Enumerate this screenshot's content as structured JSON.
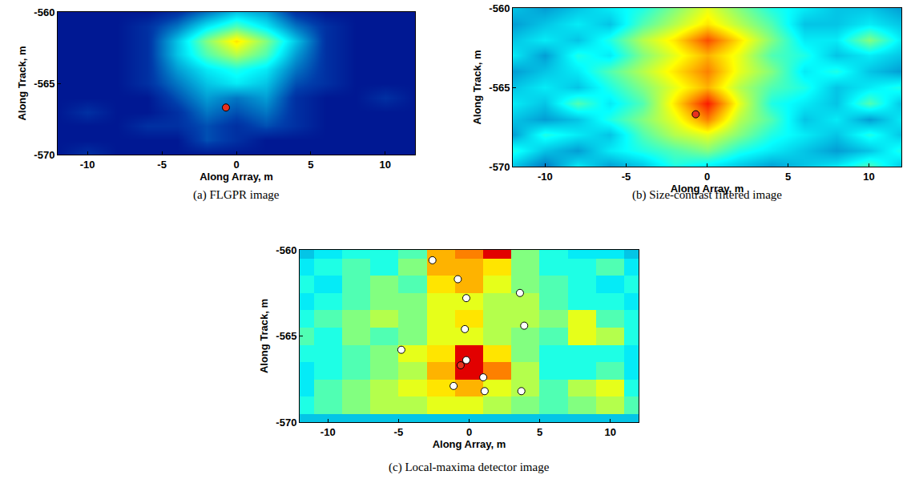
{
  "chart_data": [
    {
      "type": "heatmap",
      "title": "(a) FLGPR image",
      "xlabel": "Along Array, m",
      "ylabel": "Along Track, m",
      "xlim": [
        -12,
        12
      ],
      "ylim": [
        -570,
        -560
      ],
      "xticks": [
        -10,
        -5,
        0,
        5,
        10
      ],
      "yticks": [
        -570,
        -565,
        -560
      ],
      "x": [
        -12,
        -10,
        -8,
        -6,
        -4,
        -2,
        0,
        2,
        4,
        6,
        8,
        10,
        12
      ],
      "y": [
        -570,
        -569,
        -568,
        -567,
        -566,
        -565,
        -564,
        -563,
        -562,
        -561,
        -560
      ],
      "z": [
        [
          0.05,
          0.1,
          0.05,
          0.05,
          0.05,
          0.05,
          0.05,
          0.05,
          0.05,
          0.05,
          0.05,
          0.05,
          0.05
        ],
        [
          0.05,
          0.05,
          0.05,
          0.05,
          0.05,
          0.15,
          0.1,
          0.05,
          0.05,
          0.05,
          0.05,
          0.05,
          0.05
        ],
        [
          0.05,
          0.05,
          0.05,
          0.1,
          0.1,
          0.15,
          0.1,
          0.15,
          0.1,
          0.05,
          0.05,
          0.05,
          0.05
        ],
        [
          0.05,
          0.1,
          0.05,
          0.05,
          0.1,
          0.2,
          0.15,
          0.2,
          0.1,
          0.05,
          0.05,
          0.05,
          0.05
        ],
        [
          0.05,
          0.05,
          0.05,
          0.05,
          0.15,
          0.25,
          0.2,
          0.25,
          0.1,
          0.05,
          0.05,
          0.1,
          0.05
        ],
        [
          0.05,
          0.05,
          0.05,
          0.1,
          0.2,
          0.3,
          0.35,
          0.3,
          0.15,
          0.1,
          0.05,
          0.05,
          0.05
        ],
        [
          0.05,
          0.05,
          0.05,
          0.1,
          0.25,
          0.35,
          0.4,
          0.35,
          0.2,
          0.1,
          0.05,
          0.05,
          0.05
        ],
        [
          0.05,
          0.05,
          0.05,
          0.1,
          0.3,
          0.45,
          0.55,
          0.45,
          0.25,
          0.1,
          0.05,
          0.05,
          0.05
        ],
        [
          0.05,
          0.05,
          0.05,
          0.1,
          0.3,
          0.5,
          0.65,
          0.5,
          0.3,
          0.1,
          0.05,
          0.05,
          0.05
        ],
        [
          0.05,
          0.05,
          0.05,
          0.1,
          0.2,
          0.35,
          0.45,
          0.35,
          0.2,
          0.1,
          0.05,
          0.05,
          0.05
        ],
        [
          0.05,
          0.05,
          0.05,
          0.05,
          0.1,
          0.2,
          0.3,
          0.25,
          0.1,
          0.05,
          0.05,
          0.05,
          0.05
        ]
      ],
      "zlim": [
        0,
        1
      ],
      "series": [
        {
          "type": "scatter",
          "color": "#e8311e",
          "marker": "circle",
          "x": [
            -0.7
          ],
          "y": [
            -566.7
          ]
        }
      ]
    },
    {
      "type": "heatmap",
      "title": "(b) Size-contrast filtered image",
      "xlabel": "Along Array, m",
      "ylabel": "Along Track, m",
      "xlim": [
        -12,
        12
      ],
      "ylim": [
        -570,
        -560
      ],
      "xticks": [
        -10,
        -5,
        0,
        5,
        10
      ],
      "yticks": [
        -570,
        -565,
        -560
      ],
      "x": [
        -12,
        -10,
        -8,
        -6,
        -4,
        -2,
        0,
        2,
        4,
        6,
        8,
        10,
        12
      ],
      "y": [
        -570,
        -569,
        -568,
        -567,
        -566,
        -565,
        -564,
        -563,
        -562,
        -561,
        -560
      ],
      "z": [
        [
          0.3,
          0.2,
          0.35,
          0.25,
          0.3,
          0.4,
          0.35,
          0.3,
          0.25,
          0.3,
          0.35,
          0.45,
          0.3
        ],
        [
          0.4,
          0.3,
          0.25,
          0.35,
          0.4,
          0.45,
          0.5,
          0.4,
          0.35,
          0.3,
          0.25,
          0.3,
          0.4
        ],
        [
          0.25,
          0.4,
          0.35,
          0.3,
          0.45,
          0.55,
          0.6,
          0.5,
          0.4,
          0.35,
          0.3,
          0.4,
          0.3
        ],
        [
          0.3,
          0.25,
          0.3,
          0.4,
          0.5,
          0.6,
          0.75,
          0.55,
          0.45,
          0.3,
          0.35,
          0.25,
          0.35
        ],
        [
          0.35,
          0.3,
          0.45,
          0.35,
          0.45,
          0.65,
          0.85,
          0.6,
          0.4,
          0.35,
          0.3,
          0.45,
          0.3
        ],
        [
          0.3,
          0.35,
          0.3,
          0.4,
          0.5,
          0.6,
          0.7,
          0.55,
          0.45,
          0.4,
          0.3,
          0.35,
          0.4
        ],
        [
          0.25,
          0.3,
          0.35,
          0.45,
          0.55,
          0.65,
          0.75,
          0.6,
          0.5,
          0.35,
          0.4,
          0.3,
          0.25
        ],
        [
          0.35,
          0.25,
          0.4,
          0.35,
          0.5,
          0.6,
          0.7,
          0.6,
          0.45,
          0.4,
          0.3,
          0.35,
          0.3
        ],
        [
          0.3,
          0.35,
          0.3,
          0.4,
          0.55,
          0.65,
          0.8,
          0.65,
          0.5,
          0.35,
          0.35,
          0.5,
          0.35
        ],
        [
          0.25,
          0.3,
          0.35,
          0.3,
          0.45,
          0.55,
          0.65,
          0.55,
          0.45,
          0.3,
          0.3,
          0.35,
          0.3
        ],
        [
          0.3,
          0.25,
          0.3,
          0.35,
          0.4,
          0.5,
          0.6,
          0.5,
          0.4,
          0.35,
          0.3,
          0.3,
          0.25
        ]
      ],
      "zlim": [
        0,
        1
      ],
      "series": [
        {
          "type": "scatter",
          "color": "#e8311e",
          "marker": "circle",
          "x": [
            -0.7
          ],
          "y": [
            -566.7
          ]
        }
      ]
    },
    {
      "type": "heatmap",
      "title": "(c) Local-maxima detector image",
      "xlabel": "Along Array, m",
      "ylabel": "Along Track, m",
      "xlim": [
        -12,
        12
      ],
      "ylim": [
        -570,
        -560
      ],
      "xticks": [
        -10,
        -5,
        0,
        5,
        10
      ],
      "yticks": [
        -570,
        -565,
        -560
      ],
      "x": [
        -12,
        -10,
        -8,
        -6,
        -4,
        -2,
        0,
        2,
        4,
        6,
        8,
        10,
        12
      ],
      "y": [
        -570,
        -569,
        -568,
        -567,
        -566,
        -565,
        -564,
        -563,
        -562,
        -561,
        -560
      ],
      "z": [
        [
          0.3,
          0.3,
          0.3,
          0.3,
          0.3,
          0.3,
          0.3,
          0.3,
          0.3,
          0.3,
          0.3,
          0.3,
          0.3
        ],
        [
          0.4,
          0.45,
          0.5,
          0.55,
          0.55,
          0.6,
          0.6,
          0.55,
          0.5,
          0.45,
          0.5,
          0.55,
          0.45
        ],
        [
          0.35,
          0.45,
          0.5,
          0.55,
          0.6,
          0.65,
          0.7,
          0.6,
          0.55,
          0.45,
          0.55,
          0.6,
          0.4
        ],
        [
          0.35,
          0.4,
          0.45,
          0.5,
          0.55,
          0.7,
          0.9,
          0.75,
          0.55,
          0.4,
          0.4,
          0.45,
          0.35
        ],
        [
          0.4,
          0.4,
          0.45,
          0.5,
          0.6,
          0.65,
          0.9,
          0.65,
          0.5,
          0.4,
          0.4,
          0.4,
          0.35
        ],
        [
          0.45,
          0.4,
          0.5,
          0.45,
          0.5,
          0.6,
          0.6,
          0.55,
          0.5,
          0.45,
          0.6,
          0.55,
          0.4
        ],
        [
          0.4,
          0.45,
          0.5,
          0.55,
          0.5,
          0.6,
          0.65,
          0.55,
          0.55,
          0.5,
          0.6,
          0.45,
          0.4
        ],
        [
          0.35,
          0.4,
          0.45,
          0.5,
          0.5,
          0.6,
          0.6,
          0.55,
          0.55,
          0.45,
          0.4,
          0.4,
          0.35
        ],
        [
          0.4,
          0.35,
          0.45,
          0.5,
          0.45,
          0.65,
          0.7,
          0.6,
          0.5,
          0.45,
          0.4,
          0.35,
          0.4
        ],
        [
          0.35,
          0.4,
          0.45,
          0.4,
          0.5,
          0.7,
          0.7,
          0.65,
          0.5,
          0.4,
          0.4,
          0.45,
          0.35
        ],
        [
          0.3,
          0.35,
          0.4,
          0.4,
          0.45,
          0.7,
          0.75,
          0.9,
          0.5,
          0.4,
          0.35,
          0.35,
          0.3
        ]
      ],
      "zlim": [
        0,
        1
      ],
      "series": [
        {
          "type": "scatter",
          "color": "#ffffff",
          "marker": "circle",
          "x": [
            -2.6,
            -0.8,
            -0.2,
            3.6,
            -0.3,
            3.9,
            -4.8,
            -0.2,
            1.0,
            -1.1,
            1.1,
            3.7
          ],
          "y": [
            -560.6,
            -561.7,
            -562.8,
            -562.5,
            -564.6,
            -564.4,
            -565.8,
            -566.4,
            -567.4,
            -567.9,
            -568.2,
            -568.2
          ]
        },
        {
          "type": "scatter",
          "color": "#e8311e",
          "marker": "circle",
          "x": [
            -0.6
          ],
          "y": [
            -566.7
          ]
        }
      ]
    }
  ]
}
